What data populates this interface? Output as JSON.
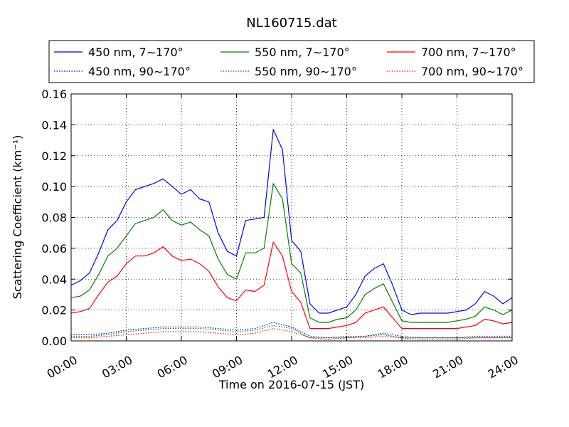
{
  "chart_data": {
    "type": "line",
    "title": "NL160715.dat",
    "xlabel": "Time on 2016-07-15 (JST)",
    "ylabel": "Scattering Coefficient (km⁻¹)",
    "x_ticks": [
      "00:00",
      "03:00",
      "06:00",
      "09:00",
      "12:00",
      "15:00",
      "18:00",
      "21:00",
      "24:00"
    ],
    "y_ticks": [
      "0.00",
      "0.02",
      "0.04",
      "0.06",
      "0.08",
      "0.10",
      "0.12",
      "0.14",
      "0.16"
    ],
    "xlim_hours": [
      0,
      24
    ],
    "ylim": [
      0,
      0.16
    ],
    "grid": true,
    "legend_position": "top",
    "series": [
      {
        "name": "450 nm, 7∼170°",
        "color": "#0000ff",
        "style": "solid",
        "x": [
          0,
          0.5,
          1,
          1.5,
          2,
          2.5,
          3,
          3.5,
          4,
          4.5,
          5,
          5.5,
          6,
          6.5,
          7,
          7.5,
          8,
          8.5,
          9,
          9.5,
          10,
          10.5,
          11,
          11.5,
          12,
          12.5,
          13,
          13.5,
          14,
          14.5,
          15,
          15.5,
          16,
          16.5,
          17,
          17.5,
          18,
          18.5,
          19,
          19.5,
          20,
          20.5,
          21,
          21.5,
          22,
          22.5,
          23,
          23.5,
          24
        ],
        "values": [
          0.036,
          0.039,
          0.044,
          0.057,
          0.072,
          0.078,
          0.09,
          0.098,
          0.1,
          0.102,
          0.105,
          0.1,
          0.095,
          0.098,
          0.092,
          0.09,
          0.07,
          0.058,
          0.055,
          0.078,
          0.079,
          0.08,
          0.137,
          0.124,
          0.065,
          0.058,
          0.024,
          0.018,
          0.018,
          0.02,
          0.022,
          0.03,
          0.042,
          0.047,
          0.05,
          0.036,
          0.02,
          0.017,
          0.018,
          0.018,
          0.018,
          0.018,
          0.019,
          0.02,
          0.024,
          0.032,
          0.029,
          0.024,
          0.028
        ]
      },
      {
        "name": "550 nm, 7∼170°",
        "color": "#008000",
        "style": "solid",
        "x": [
          0,
          0.5,
          1,
          1.5,
          2,
          2.5,
          3,
          3.5,
          4,
          4.5,
          5,
          5.5,
          6,
          6.5,
          7,
          7.5,
          8,
          8.5,
          9,
          9.5,
          10,
          10.5,
          11,
          11.5,
          12,
          12.5,
          13,
          13.5,
          14,
          14.5,
          15,
          15.5,
          16,
          16.5,
          17,
          17.5,
          18,
          18.5,
          19,
          19.5,
          20,
          20.5,
          21,
          21.5,
          22,
          22.5,
          23,
          23.5,
          24
        ],
        "values": [
          0.028,
          0.029,
          0.033,
          0.043,
          0.055,
          0.06,
          0.068,
          0.076,
          0.078,
          0.08,
          0.085,
          0.078,
          0.075,
          0.077,
          0.072,
          0.068,
          0.053,
          0.043,
          0.04,
          0.057,
          0.057,
          0.06,
          0.102,
          0.092,
          0.05,
          0.044,
          0.015,
          0.012,
          0.012,
          0.014,
          0.015,
          0.02,
          0.03,
          0.034,
          0.037,
          0.025,
          0.013,
          0.012,
          0.012,
          0.012,
          0.012,
          0.012,
          0.013,
          0.014,
          0.016,
          0.022,
          0.02,
          0.017,
          0.02
        ]
      },
      {
        "name": "700 nm, 7∼170°",
        "color": "#ff0000",
        "style": "solid",
        "x": [
          0,
          0.5,
          1,
          1.5,
          2,
          2.5,
          3,
          3.5,
          4,
          4.5,
          5,
          5.5,
          6,
          6.5,
          7,
          7.5,
          8,
          8.5,
          9,
          9.5,
          10,
          10.5,
          11,
          11.5,
          12,
          12.5,
          13,
          13.5,
          14,
          14.5,
          15,
          15.5,
          16,
          16.5,
          17,
          17.5,
          18,
          18.5,
          19,
          19.5,
          20,
          20.5,
          21,
          21.5,
          22,
          22.5,
          23,
          23.5,
          24
        ],
        "values": [
          0.018,
          0.019,
          0.021,
          0.03,
          0.038,
          0.042,
          0.05,
          0.055,
          0.055,
          0.057,
          0.061,
          0.055,
          0.052,
          0.053,
          0.05,
          0.045,
          0.035,
          0.028,
          0.026,
          0.033,
          0.032,
          0.036,
          0.064,
          0.055,
          0.032,
          0.025,
          0.008,
          0.008,
          0.008,
          0.009,
          0.01,
          0.012,
          0.018,
          0.02,
          0.022,
          0.015,
          0.008,
          0.008,
          0.008,
          0.008,
          0.008,
          0.008,
          0.008,
          0.009,
          0.01,
          0.014,
          0.013,
          0.011,
          0.012
        ]
      },
      {
        "name": "450 nm, 90∼170°",
        "color": "#0000ff",
        "style": "dotted",
        "x": [
          0,
          1,
          2,
          3,
          4,
          5,
          6,
          7,
          8,
          9,
          10,
          11,
          12,
          13,
          14,
          15,
          16,
          17,
          18,
          19,
          20,
          21,
          22,
          23,
          24
        ],
        "values": [
          0.004,
          0.004,
          0.005,
          0.007,
          0.008,
          0.009,
          0.009,
          0.009,
          0.008,
          0.007,
          0.008,
          0.012,
          0.009,
          0.003,
          0.002,
          0.003,
          0.003,
          0.005,
          0.003,
          0.002,
          0.002,
          0.002,
          0.003,
          0.003,
          0.003
        ]
      },
      {
        "name": "550 nm, 90∼170°",
        "color": "#008000",
        "style": "dotted",
        "x": [
          0,
          1,
          2,
          3,
          4,
          5,
          6,
          7,
          8,
          9,
          10,
          11,
          12,
          13,
          14,
          15,
          16,
          17,
          18,
          19,
          20,
          21,
          22,
          23,
          24
        ],
        "values": [
          0.003,
          0.003,
          0.004,
          0.006,
          0.007,
          0.008,
          0.008,
          0.008,
          0.007,
          0.006,
          0.007,
          0.01,
          0.008,
          0.002,
          0.002,
          0.002,
          0.003,
          0.004,
          0.002,
          0.002,
          0.002,
          0.002,
          0.002,
          0.002,
          0.002
        ]
      },
      {
        "name": "700 nm, 90∼170°",
        "color": "#ff0000",
        "style": "dotted",
        "x": [
          0,
          1,
          2,
          3,
          4,
          5,
          6,
          7,
          8,
          9,
          10,
          11,
          12,
          13,
          14,
          15,
          16,
          17,
          18,
          19,
          20,
          21,
          22,
          23,
          24
        ],
        "values": [
          0.002,
          0.002,
          0.003,
          0.004,
          0.005,
          0.006,
          0.006,
          0.006,
          0.005,
          0.004,
          0.005,
          0.008,
          0.006,
          0.002,
          0.001,
          0.002,
          0.002,
          0.003,
          0.002,
          0.001,
          0.001,
          0.001,
          0.002,
          0.002,
          0.002
        ]
      }
    ]
  }
}
